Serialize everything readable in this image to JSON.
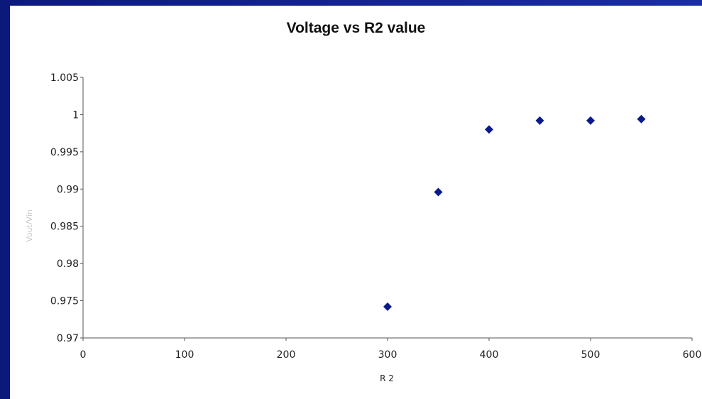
{
  "chart_data": {
    "type": "scatter",
    "title": "Voltage vs R2 value",
    "xlabel": "R 2",
    "ylabel": "Vout/Vin",
    "xlim": [
      0,
      600
    ],
    "ylim": [
      0.97,
      1.005
    ],
    "x_ticks": [
      "0",
      "100",
      "200",
      "300",
      "400",
      "500",
      "600"
    ],
    "y_ticks": [
      "0.97",
      "0.975",
      "0.98",
      "0.985",
      "0.99",
      "0.995",
      "1",
      "1.005"
    ],
    "grid": false,
    "marker_color": "#0a1a8c",
    "series": [
      {
        "x": [
          300,
          350,
          400,
          450,
          500,
          550
        ],
        "y": [
          0.9742,
          0.9896,
          0.998,
          0.9992,
          0.9992,
          0.9994
        ]
      }
    ]
  }
}
